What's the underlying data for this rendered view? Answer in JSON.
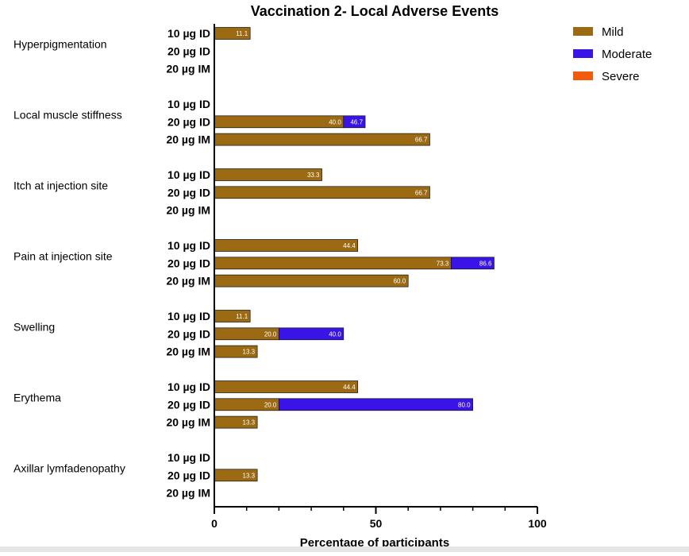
{
  "chart_data": {
    "type": "bar",
    "orientation": "horizontal",
    "stacked": true,
    "title": "Vaccination 2- Local Adverse Events",
    "xlabel": "Percentage of participants",
    "ylabel": "",
    "xlim": [
      0,
      100
    ],
    "xticks": [
      0,
      50,
      100
    ],
    "minor_tick_step": 10,
    "grid": false,
    "legend_position": "top-right",
    "groups": [
      "Hyperpigmentation",
      "Local muscle stiffness",
      "Itch at injection site",
      "Pain at injection site",
      "Swelling",
      "Erythema",
      "Axillar lymfadenopathy"
    ],
    "doses": [
      "10 µg ID",
      "20 µg ID",
      "20 µg IM"
    ],
    "series": [
      {
        "name": "Mild",
        "color": "#9b6a13",
        "values": [
          [
            11.1,
            0,
            0
          ],
          [
            0,
            40.0,
            66.7
          ],
          [
            33.3,
            66.7,
            0
          ],
          [
            44.4,
            73.3,
            60.0
          ],
          [
            11.1,
            20.0,
            13.3
          ],
          [
            44.4,
            20.0,
            13.3
          ],
          [
            0,
            13.3,
            0
          ]
        ],
        "labels": [
          [
            "11.1",
            "",
            ""
          ],
          [
            "",
            "40.0",
            "66.7"
          ],
          [
            "33.3",
            "66.7",
            ""
          ],
          [
            "44.4",
            "73.3",
            "60.0"
          ],
          [
            "11.1",
            "20.0",
            "13.3"
          ],
          [
            "44.4",
            "20.0",
            "13.3"
          ],
          [
            "",
            "13.3",
            ""
          ]
        ]
      },
      {
        "name": "Moderate",
        "color": "#3a14e6",
        "values": [
          [
            0,
            0,
            0
          ],
          [
            0,
            46.7,
            0
          ],
          [
            0,
            0,
            0
          ],
          [
            0,
            86.6,
            0
          ],
          [
            0,
            40.0,
            0
          ],
          [
            0,
            80.0,
            0
          ],
          [
            0,
            0,
            0
          ]
        ],
        "labels": [
          [
            "",
            "",
            ""
          ],
          [
            "",
            "46.7",
            ""
          ],
          [
            "",
            "",
            ""
          ],
          [
            "",
            "86.6",
            ""
          ],
          [
            "",
            "40.0",
            ""
          ],
          [
            "",
            "80.0",
            ""
          ],
          [
            "",
            "",
            ""
          ]
        ]
      },
      {
        "name": "Severe",
        "color": "#f25a0c",
        "values": [
          [
            0,
            0,
            0
          ],
          [
            0,
            0,
            0
          ],
          [
            0,
            0,
            0
          ],
          [
            0,
            0,
            0
          ],
          [
            0,
            0,
            0
          ],
          [
            0,
            0,
            0
          ],
          [
            0,
            0,
            0
          ]
        ],
        "labels": [
          [
            "",
            "",
            ""
          ],
          [
            "",
            "",
            ""
          ],
          [
            "",
            "",
            ""
          ],
          [
            "",
            "",
            ""
          ],
          [
            "",
            "",
            ""
          ],
          [
            "",
            "",
            ""
          ],
          [
            "",
            "",
            ""
          ]
        ]
      }
    ],
    "value_semantics": "Moderate/Severe values are cumulative percentages (Mild + higher grades); bars drawn from the previous cumulative value."
  }
}
